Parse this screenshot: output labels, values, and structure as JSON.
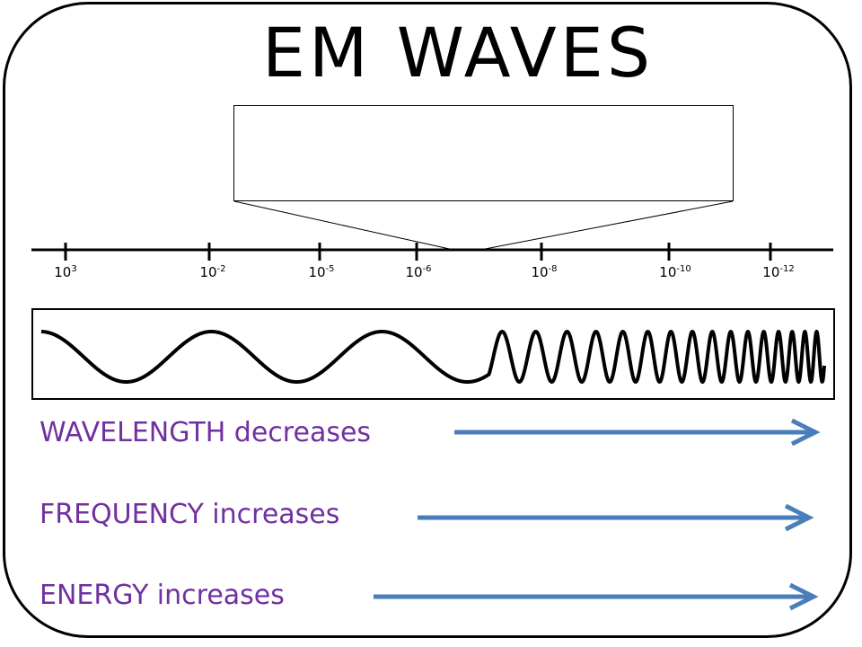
{
  "title": "EM WAVES",
  "scale": {
    "ticks": [
      {
        "base": "10",
        "exp": "3"
      },
      {
        "base": "10",
        "exp": "-2"
      },
      {
        "base": "10",
        "exp": "-5"
      },
      {
        "base": "10",
        "exp": "-6"
      },
      {
        "base": "10",
        "exp": "-8"
      },
      {
        "base": "10",
        "exp": "-10"
      },
      {
        "base": "10",
        "exp": "-12"
      }
    ]
  },
  "trends": [
    {
      "label": "WAVELENGTH decreases"
    },
    {
      "label": "FREQUENCY increases"
    },
    {
      "label": "ENERGY increases"
    }
  ],
  "colors": {
    "text_purple": "#7030a0",
    "arrow_blue": "#4a7ebb",
    "ink": "#000000"
  }
}
